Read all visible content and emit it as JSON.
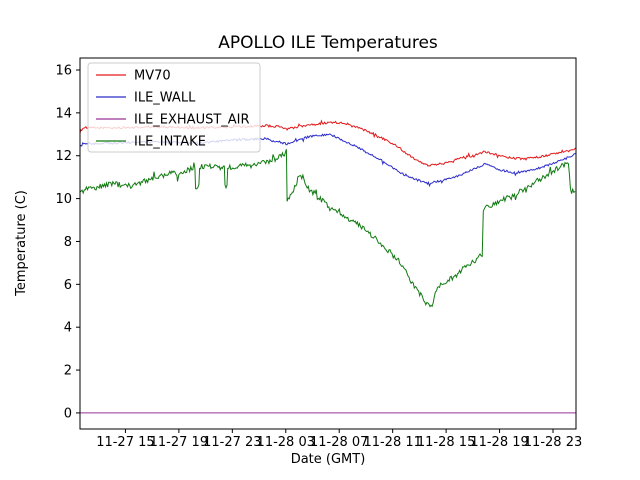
{
  "chart_data": {
    "type": "line",
    "title": "APOLLO ILE Temperatures",
    "xlabel": "Date (GMT)",
    "ylabel": "Temperature (C)",
    "x_unit": "hours since 11-27 00:00 GMT",
    "xlim": [
      11.6,
      48.72
    ],
    "ylim": [
      -0.75,
      16.56
    ],
    "yticks": [
      0,
      2,
      4,
      6,
      8,
      10,
      12,
      14,
      16
    ],
    "xticks": [
      15,
      19,
      23,
      27,
      31,
      35,
      39,
      43,
      47
    ],
    "xticklabels": [
      "11-27 15",
      "11-27 19",
      "11-27 23",
      "11-28 03",
      "11-28 07",
      "11-28 11",
      "11-28 15",
      "11-28 19",
      "11-28 23"
    ],
    "grid": false,
    "legend": {
      "position": "upper left",
      "frame_fill": "rgba(255,255,255,0.8)",
      "frame_border": "#cccccc"
    },
    "series": [
      {
        "name": "MV70",
        "color": "#e31a1a",
        "noise": 0.05,
        "points": [
          [
            11.6,
            13.1
          ],
          [
            11.8,
            13.3
          ],
          [
            14.6,
            13.3
          ],
          [
            17.6,
            13.35
          ],
          [
            20.6,
            13.3
          ],
          [
            23.6,
            13.35
          ],
          [
            25.5,
            13.4
          ],
          [
            26.6,
            13.35
          ],
          [
            27.1,
            13.25
          ],
          [
            28.8,
            13.45
          ],
          [
            30.3,
            13.55
          ],
          [
            30.9,
            13.55
          ],
          [
            32.2,
            13.35
          ],
          [
            33.7,
            13.0
          ],
          [
            35.2,
            12.5
          ],
          [
            36.3,
            12.0
          ],
          [
            37.1,
            11.7
          ],
          [
            37.8,
            11.55
          ],
          [
            38.9,
            11.65
          ],
          [
            40.0,
            11.9
          ],
          [
            41.0,
            12.0
          ],
          [
            41.9,
            12.2
          ],
          [
            43.0,
            12.0
          ],
          [
            43.9,
            11.9
          ],
          [
            44.9,
            11.85
          ],
          [
            46.0,
            11.95
          ],
          [
            47.2,
            12.1
          ],
          [
            48.1,
            12.2
          ],
          [
            48.72,
            12.35
          ]
        ]
      },
      {
        "name": "ILE_WALL",
        "color": "#2c2cc8",
        "noise": 0.05,
        "points": [
          [
            11.6,
            12.4
          ],
          [
            11.8,
            12.55
          ],
          [
            14.6,
            12.6
          ],
          [
            17.6,
            12.65
          ],
          [
            20.6,
            12.6
          ],
          [
            23.6,
            12.75
          ],
          [
            25.5,
            12.8
          ],
          [
            27.1,
            12.55
          ],
          [
            28.8,
            12.9
          ],
          [
            30.3,
            13.0
          ],
          [
            32.2,
            12.45
          ],
          [
            34.1,
            11.8
          ],
          [
            35.6,
            11.2
          ],
          [
            36.7,
            10.9
          ],
          [
            37.6,
            10.7
          ],
          [
            38.6,
            10.85
          ],
          [
            39.7,
            11.0
          ],
          [
            40.8,
            11.3
          ],
          [
            41.9,
            11.6
          ],
          [
            43.0,
            11.35
          ],
          [
            44.1,
            11.2
          ],
          [
            45.3,
            11.3
          ],
          [
            46.8,
            11.6
          ],
          [
            47.9,
            11.85
          ],
          [
            48.72,
            12.1
          ]
        ]
      },
      {
        "name": "ILE_EXHAUST_AIR",
        "color": "#993399",
        "noise": 0,
        "points": [
          [
            11.6,
            0.0
          ],
          [
            48.72,
            0.0
          ]
        ]
      },
      {
        "name": "ILE_INTAKE",
        "color": "#107a10",
        "noise": 0.12,
        "points": [
          [
            11.6,
            10.4
          ],
          [
            12.8,
            10.5
          ],
          [
            13.9,
            10.7
          ],
          [
            15.4,
            10.6
          ],
          [
            16.9,
            10.9
          ],
          [
            18.4,
            11.2
          ],
          [
            18.85,
            11.15
          ],
          [
            18.9,
            10.9
          ],
          [
            19.0,
            11.1
          ],
          [
            19.5,
            11.3
          ],
          [
            20.2,
            11.45
          ],
          [
            20.25,
            10.4
          ],
          [
            20.5,
            10.4
          ],
          [
            20.55,
            11.5
          ],
          [
            21.4,
            11.5
          ],
          [
            22.4,
            11.45
          ],
          [
            22.45,
            10.55
          ],
          [
            22.6,
            10.6
          ],
          [
            22.65,
            11.45
          ],
          [
            23.2,
            11.5
          ],
          [
            24.4,
            11.55
          ],
          [
            25.5,
            11.7
          ],
          [
            26.2,
            11.85
          ],
          [
            26.9,
            12.1
          ],
          [
            27.05,
            12.3
          ],
          [
            27.1,
            9.95
          ],
          [
            27.5,
            10.3
          ],
          [
            27.9,
            10.95
          ],
          [
            28.2,
            11.0
          ],
          [
            28.6,
            10.5
          ],
          [
            29.2,
            10.2
          ],
          [
            30.3,
            9.6
          ],
          [
            31.4,
            9.2
          ],
          [
            32.6,
            8.7
          ],
          [
            33.7,
            8.15
          ],
          [
            34.8,
            7.5
          ],
          [
            35.6,
            7.0
          ],
          [
            36.3,
            6.2
          ],
          [
            37.1,
            5.5
          ],
          [
            37.4,
            5.15
          ],
          [
            37.95,
            5.05
          ],
          [
            38.2,
            5.65
          ],
          [
            38.9,
            6.1
          ],
          [
            39.7,
            6.4
          ],
          [
            40.4,
            6.8
          ],
          [
            41.2,
            7.1
          ],
          [
            41.7,
            7.4
          ],
          [
            41.78,
            9.5
          ],
          [
            42.3,
            9.65
          ],
          [
            43.0,
            9.9
          ],
          [
            43.8,
            10.1
          ],
          [
            44.9,
            10.45
          ],
          [
            46.0,
            10.9
          ],
          [
            47.2,
            11.35
          ],
          [
            47.9,
            11.6
          ],
          [
            48.15,
            11.7
          ],
          [
            48.3,
            10.5
          ],
          [
            48.65,
            10.35
          ]
        ]
      }
    ]
  }
}
